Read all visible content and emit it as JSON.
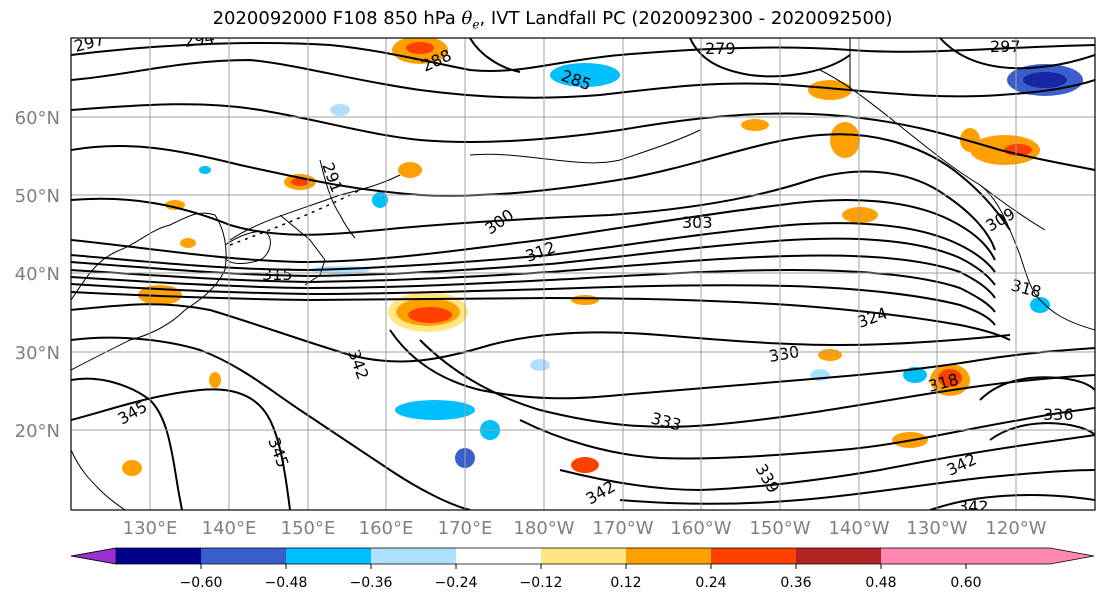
{
  "title": {
    "prefix": "2020092000 F108 850 hPa ",
    "theta_symbol": "θ",
    "theta_sub": "e",
    "suffix": ", IVT Landfall PC (2020092300 - 2020092500)"
  },
  "map": {
    "lat_labels": [
      "60°N",
      "50°N",
      "40°N",
      "30°N",
      "20°N"
    ],
    "lon_labels": [
      "130°E",
      "140°E",
      "150°E",
      "160°E",
      "170°E",
      "180°W",
      "170°W",
      "160°W",
      "150°W",
      "140°W",
      "130°W",
      "120°W"
    ],
    "contour_labels": [
      "297",
      "294",
      "288",
      "279",
      "285",
      "297",
      "291",
      "300",
      "303",
      "312",
      "315",
      "309",
      "318",
      "324",
      "330",
      "342",
      "345",
      "345",
      "333",
      "339",
      "342",
      "336",
      "342",
      "342",
      "318"
    ],
    "shading_colors": {
      "light_orange": "#ffe680",
      "orange": "#ffa000",
      "red_orange": "#ff4000",
      "light_blue": "#aee0ff",
      "blue": "#00bfff",
      "dark_blue": "#3a5fcd"
    }
  },
  "colorbar": {
    "colors": [
      "#9932cc",
      "#00008b",
      "#3a5fcd",
      "#00bfff",
      "#b0e0ff",
      "#ffffff",
      "#ffe680",
      "#ffa000",
      "#ff4000",
      "#b22222",
      "#ff88b0"
    ],
    "ticks": [
      "−0.60",
      "−0.48",
      "−0.36",
      "−0.24",
      "−0.12",
      "0.12",
      "0.24",
      "0.36",
      "0.48",
      "0.60"
    ]
  }
}
